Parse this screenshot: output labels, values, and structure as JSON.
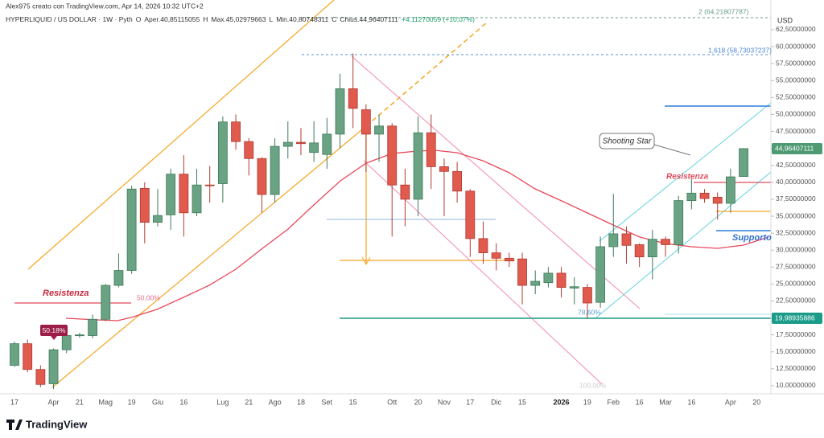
{
  "chart_data": {
    "type": "candlestick",
    "watermark_header": "Alex975 creato con TradingView.com, Apr 14, 2026 10:32 UTC+2",
    "title": "HYPERLIQUID / US DOLLAR · 1W · Pyth",
    "ohlc_legend": [
      "O",
      "Aper.40,85115055",
      "H",
      "Max.45,02979663",
      "L",
      "Min.40,80748311",
      "C",
      "Chius.44,96407111",
      "+4,11270059 (+10,07%)"
    ],
    "y_axis_label": "USD",
    "categories": [
      "17",
      null,
      null,
      "Apr",
      null,
      "21",
      null,
      "Mag",
      null,
      "19",
      null,
      "Giu",
      null,
      "16",
      null,
      null,
      "Lug",
      null,
      "21",
      null,
      "Ago",
      null,
      "18",
      null,
      "Set",
      null,
      "15",
      null,
      null,
      "Ott",
      null,
      "20",
      null,
      "Nov",
      null,
      "17",
      null,
      "Dic",
      null,
      "15",
      null,
      null,
      "2026",
      null,
      "19",
      null,
      "Feb",
      null,
      "16",
      null,
      "Mar",
      null,
      "16",
      null,
      null,
      "Apr",
      null,
      "20"
    ],
    "open": [
      13.0,
      16.2,
      12.4,
      10.3,
      15.3,
      17.4,
      17.4,
      19.8,
      24.8,
      27.0,
      39.1,
      34.1,
      35.2,
      41.2,
      35.5,
      39.6,
      39.8,
      48.9,
      46.0,
      43.5,
      38.2,
      45.3,
      45.9,
      44.4,
      44.1,
      47.1,
      53.8,
      50.7,
      47.1,
      48.3,
      39.6,
      37.5,
      47.3,
      42.3,
      41.6,
      38.7,
      31.7,
      29.6,
      28.8,
      28.7,
      24.8,
      25.2,
      26.6,
      24.4,
      24.5,
      22.3,
      30.5,
      32.4,
      30.8,
      29.0,
      31.6,
      30.8,
      37.3,
      38.4,
      37.8,
      36.9,
      40.85115055,
      null
    ],
    "high": [
      16.5,
      16.8,
      13.0,
      15.5,
      18.0,
      17.8,
      20.5,
      25.0,
      29.5,
      39.5,
      40.0,
      39.0,
      42.0,
      44.0,
      42.0,
      42.4,
      49.7,
      50.0,
      46.5,
      43.7,
      46.5,
      49.0,
      48.0,
      49.0,
      49.5,
      56.0,
      59.0,
      51.5,
      50.0,
      48.7,
      42.0,
      49.7,
      50.0,
      43.5,
      43.0,
      39.0,
      34.2,
      31.0,
      29.6,
      29.6,
      27.0,
      27.5,
      27.5,
      26.0,
      25.0,
      32.0,
      38.3,
      33.5,
      31.0,
      33.0,
      32.0,
      38.0,
      40.5,
      39.0,
      38.5,
      42.0,
      45.02979663,
      null
    ],
    "low": [
      12.8,
      12.0,
      9.8,
      9.5,
      14.8,
      17.1,
      17.0,
      19.5,
      24.5,
      26.5,
      31.0,
      33.5,
      33.0,
      32.0,
      35.0,
      37.0,
      37.0,
      44.8,
      41.0,
      35.5,
      37.0,
      43.5,
      44.0,
      43.0,
      42.0,
      45.0,
      48.0,
      41.5,
      43.0,
      32.0,
      33.5,
      35.0,
      39.0,
      35.0,
      37.0,
      29.0,
      28.0,
      27.0,
      27.5,
      22.0,
      23.5,
      24.5,
      23.0,
      22.0,
      20.0,
      21.5,
      29.0,
      28.0,
      27.5,
      25.7,
      29.0,
      29.5,
      36.0,
      37.0,
      34.5,
      35.5,
      40.80748311,
      null
    ],
    "close": [
      16.2,
      12.4,
      10.2,
      15.3,
      17.4,
      17.5,
      19.8,
      24.8,
      27.0,
      39.0,
      34.1,
      35.1,
      41.2,
      35.5,
      39.6,
      39.5,
      48.9,
      46.0,
      43.5,
      38.2,
      45.3,
      45.9,
      45.7,
      45.8,
      47.1,
      53.8,
      50.9,
      47.1,
      48.3,
      39.6,
      37.5,
      47.3,
      42.3,
      41.6,
      38.7,
      31.7,
      29.6,
      28.8,
      28.4,
      24.8,
      25.4,
      26.6,
      24.5,
      24.6,
      22.2,
      30.5,
      32.4,
      30.7,
      29.0,
      31.6,
      30.8,
      37.3,
      38.4,
      37.6,
      36.9,
      40.8,
      44.96407111,
      null
    ],
    "up_color": "#6aa383",
    "down_color": "#e05a4e",
    "ylim": [
      8.81,
      66.88
    ],
    "yticks": [
      {
        "value": 10,
        "label": "10,00000000"
      },
      {
        "value": 12.5,
        "label": "12,50000000"
      },
      {
        "value": 15,
        "label": "15,00000000"
      },
      {
        "value": 17.5,
        "label": "17,50000000"
      },
      {
        "value": 20,
        "label": "20,00000000"
      },
      {
        "value": 22.5,
        "label": "22,50000000"
      },
      {
        "value": 25,
        "label": "25,00000000"
      },
      {
        "value": 27.5,
        "label": "27,50000000"
      },
      {
        "value": 30,
        "label": "30,00000000"
      },
      {
        "value": 32.5,
        "label": "32,50000000"
      },
      {
        "value": 35,
        "label": "35,00000000"
      },
      {
        "value": 37.5,
        "label": "37,50000000"
      },
      {
        "value": 40,
        "label": "40,00000000"
      },
      {
        "value": 42.5,
        "label": "42,50000000"
      },
      {
        "value": 45,
        "label": "45,00000000"
      },
      {
        "value": 47.5,
        "label": "47,50000000"
      },
      {
        "value": 50,
        "label": "50,00000000"
      },
      {
        "value": 52.5,
        "label": "52,50000000"
      },
      {
        "value": 55,
        "label": "55,00000000"
      },
      {
        "value": 57.5,
        "label": "57,50000000"
      },
      {
        "value": 60,
        "label": "60,00000000"
      },
      {
        "value": 62.5,
        "label": "62,50000000"
      }
    ],
    "grid": false,
    "price_labels": [
      "44,96407111",
      "19,98935886"
    ],
    "annotations": {
      "shooting_star": "Shooting Star",
      "resistance_left": "Resistenza",
      "resistance_right": "Resistenza",
      "support": "Supporto",
      "fib_50": "50,00%",
      "fib_786": "78,60%",
      "fib_100": "100,00%",
      "fib_1618": "1,618 (58,73037237)",
      "fib_2": "2 (64,21807787)",
      "badge": "50.18%"
    },
    "brand": "TradingView"
  }
}
